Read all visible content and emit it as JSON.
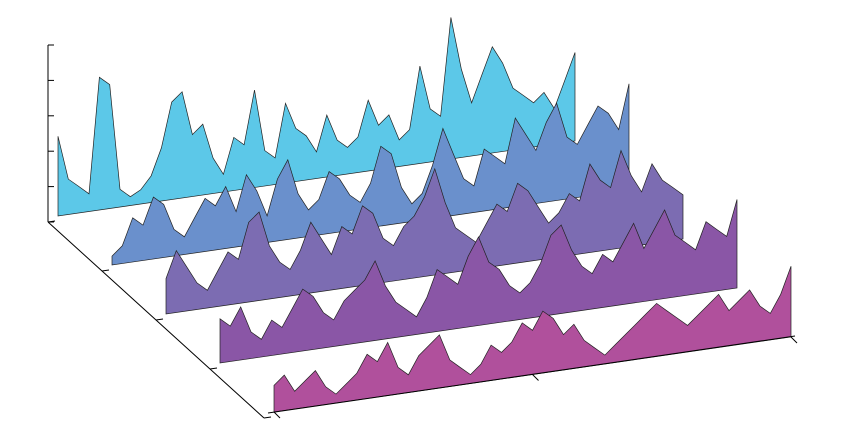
{
  "chart_data": {
    "type": "waterfall",
    "x": [
      0,
      2,
      4,
      6,
      8,
      10,
      12,
      14,
      16,
      18,
      20,
      22,
      24,
      26,
      28,
      30,
      32,
      34,
      36,
      38,
      40,
      42,
      44,
      46,
      48,
      50,
      52,
      54,
      56,
      58,
      60,
      62,
      64,
      66,
      68,
      70,
      72,
      74,
      76,
      78,
      80,
      82,
      84,
      86,
      88,
      90,
      92,
      94,
      96,
      98,
      100
    ],
    "xlim": [
      0,
      100
    ],
    "xticks": [
      0,
      50,
      100
    ],
    "ylim": [
      0,
      1
    ],
    "yticks": [
      0,
      0.2,
      0.4,
      0.6,
      0.8,
      1
    ],
    "series": [
      {
        "color": "#5cc8e8",
        "values": [
          0.45,
          0.2,
          0.15,
          0.1,
          0.75,
          0.7,
          0.1,
          0.05,
          0.08,
          0.15,
          0.3,
          0.55,
          0.6,
          0.35,
          0.4,
          0.2,
          0.1,
          0.3,
          0.25,
          0.55,
          0.2,
          0.15,
          0.45,
          0.3,
          0.25,
          0.15,
          0.35,
          0.2,
          0.15,
          0.2,
          0.4,
          0.25,
          0.3,
          0.15,
          0.2,
          0.55,
          0.3,
          0.25,
          0.8,
          0.5,
          0.3,
          0.45,
          0.6,
          0.5,
          0.35,
          0.3,
          0.25,
          0.3,
          0.2,
          0.35,
          0.5
        ]
      },
      {
        "color": "#6a90cc",
        "values": [
          0.05,
          0.1,
          0.25,
          0.2,
          0.35,
          0.3,
          0.15,
          0.1,
          0.2,
          0.3,
          0.25,
          0.35,
          0.2,
          0.4,
          0.3,
          0.15,
          0.35,
          0.45,
          0.25,
          0.15,
          0.2,
          0.35,
          0.3,
          0.2,
          0.15,
          0.25,
          0.45,
          0.4,
          0.2,
          0.1,
          0.15,
          0.3,
          0.5,
          0.35,
          0.2,
          0.15,
          0.35,
          0.3,
          0.25,
          0.5,
          0.4,
          0.3,
          0.45,
          0.55,
          0.35,
          0.3,
          0.4,
          0.5,
          0.45,
          0.35,
          0.6
        ]
      },
      {
        "color": "#7c6cb2",
        "values": [
          0.2,
          0.35,
          0.25,
          0.15,
          0.1,
          0.2,
          0.3,
          0.25,
          0.45,
          0.5,
          0.3,
          0.2,
          0.15,
          0.25,
          0.4,
          0.3,
          0.2,
          0.35,
          0.3,
          0.45,
          0.4,
          0.25,
          0.2,
          0.3,
          0.35,
          0.45,
          0.6,
          0.4,
          0.25,
          0.2,
          0.15,
          0.25,
          0.35,
          0.3,
          0.45,
          0.4,
          0.3,
          0.2,
          0.25,
          0.35,
          0.3,
          0.5,
          0.4,
          0.35,
          0.55,
          0.4,
          0.3,
          0.45,
          0.35,
          0.3,
          0.25
        ]
      },
      {
        "color": "#8a56a6",
        "values": [
          0.25,
          0.2,
          0.3,
          0.15,
          0.1,
          0.2,
          0.15,
          0.25,
          0.35,
          0.3,
          0.2,
          0.15,
          0.25,
          0.3,
          0.35,
          0.45,
          0.3,
          0.2,
          0.15,
          0.1,
          0.2,
          0.35,
          0.3,
          0.25,
          0.4,
          0.5,
          0.35,
          0.3,
          0.2,
          0.15,
          0.2,
          0.3,
          0.45,
          0.5,
          0.35,
          0.25,
          0.2,
          0.3,
          0.25,
          0.35,
          0.45,
          0.3,
          0.4,
          0.5,
          0.35,
          0.3,
          0.25,
          0.4,
          0.35,
          0.3,
          0.5
        ]
      },
      {
        "color": "#b0509c",
        "values": [
          0.15,
          0.2,
          0.1,
          0.15,
          0.2,
          0.1,
          0.05,
          0.1,
          0.15,
          0.25,
          0.2,
          0.3,
          0.15,
          0.1,
          0.2,
          0.25,
          0.3,
          0.15,
          0.1,
          0.05,
          0.1,
          0.2,
          0.15,
          0.2,
          0.3,
          0.25,
          0.35,
          0.3,
          0.2,
          0.25,
          0.15,
          0.1,
          0.05,
          0.1,
          0.15,
          0.2,
          0.25,
          0.3,
          0.25,
          0.2,
          0.15,
          0.2,
          0.25,
          0.3,
          0.2,
          0.25,
          0.3,
          0.2,
          0.15,
          0.25,
          0.4
        ]
      }
    ]
  }
}
